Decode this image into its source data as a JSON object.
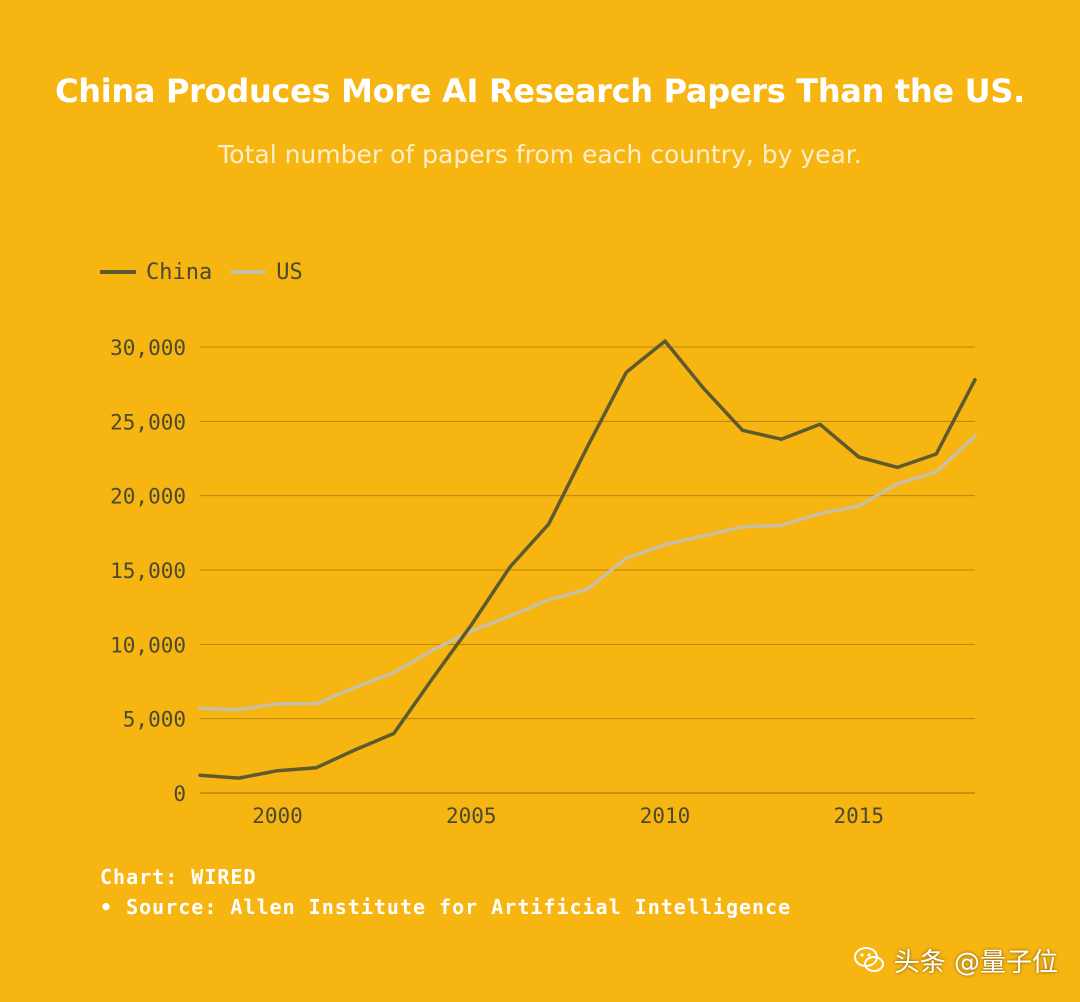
{
  "header": {
    "title": "China Produces More AI Research Papers Than the US.",
    "subtitle": "Total number of papers from each country, by year."
  },
  "footer": {
    "credit": "Chart: WIRED",
    "source": "• Source: Allen Institute for Artificial Intelligence"
  },
  "watermark": {
    "text": "头条 @量子位"
  },
  "colors": {
    "background": "#F7B512",
    "china": "#5E5A2E",
    "us": "#C9BFA2",
    "grid": "#B58709",
    "tick_text": "#4A4A2E"
  },
  "chart_data": {
    "type": "line",
    "title": "China Produces More AI Research Papers Than the US.",
    "subtitle": "Total number of papers from each country, by year.",
    "xlabel": "",
    "ylabel": "",
    "xlim": [
      1998,
      2018
    ],
    "ylim": [
      0,
      30000
    ],
    "x_ticks": [
      2000,
      2005,
      2010,
      2015
    ],
    "y_ticks": [
      0,
      5000,
      10000,
      15000,
      20000,
      25000,
      30000
    ],
    "y_tick_labels": [
      "0",
      "5,000",
      "10,000",
      "15,000",
      "20,000",
      "25,000",
      "30,000"
    ],
    "grid": "horizontal",
    "legend_position": "top-left",
    "x": [
      1998,
      1999,
      2000,
      2001,
      2002,
      2003,
      2004,
      2005,
      2006,
      2007,
      2008,
      2009,
      2010,
      2011,
      2012,
      2013,
      2014,
      2015,
      2016,
      2017,
      2018
    ],
    "series": [
      {
        "name": "China",
        "values": [
          1200,
          1000,
          1500,
          1700,
          2900,
          4000,
          7700,
          11300,
          15200,
          18100,
          23300,
          28300,
          30400,
          27200,
          24400,
          23800,
          24800,
          22600,
          21900,
          22800,
          27800
        ]
      },
      {
        "name": "US",
        "values": [
          5700,
          5600,
          6000,
          6000,
          7100,
          8100,
          9600,
          10900,
          11900,
          13000,
          13700,
          15800,
          16700,
          17300,
          17900,
          18000,
          18800,
          19300,
          20800,
          21600,
          24000
        ]
      }
    ]
  }
}
